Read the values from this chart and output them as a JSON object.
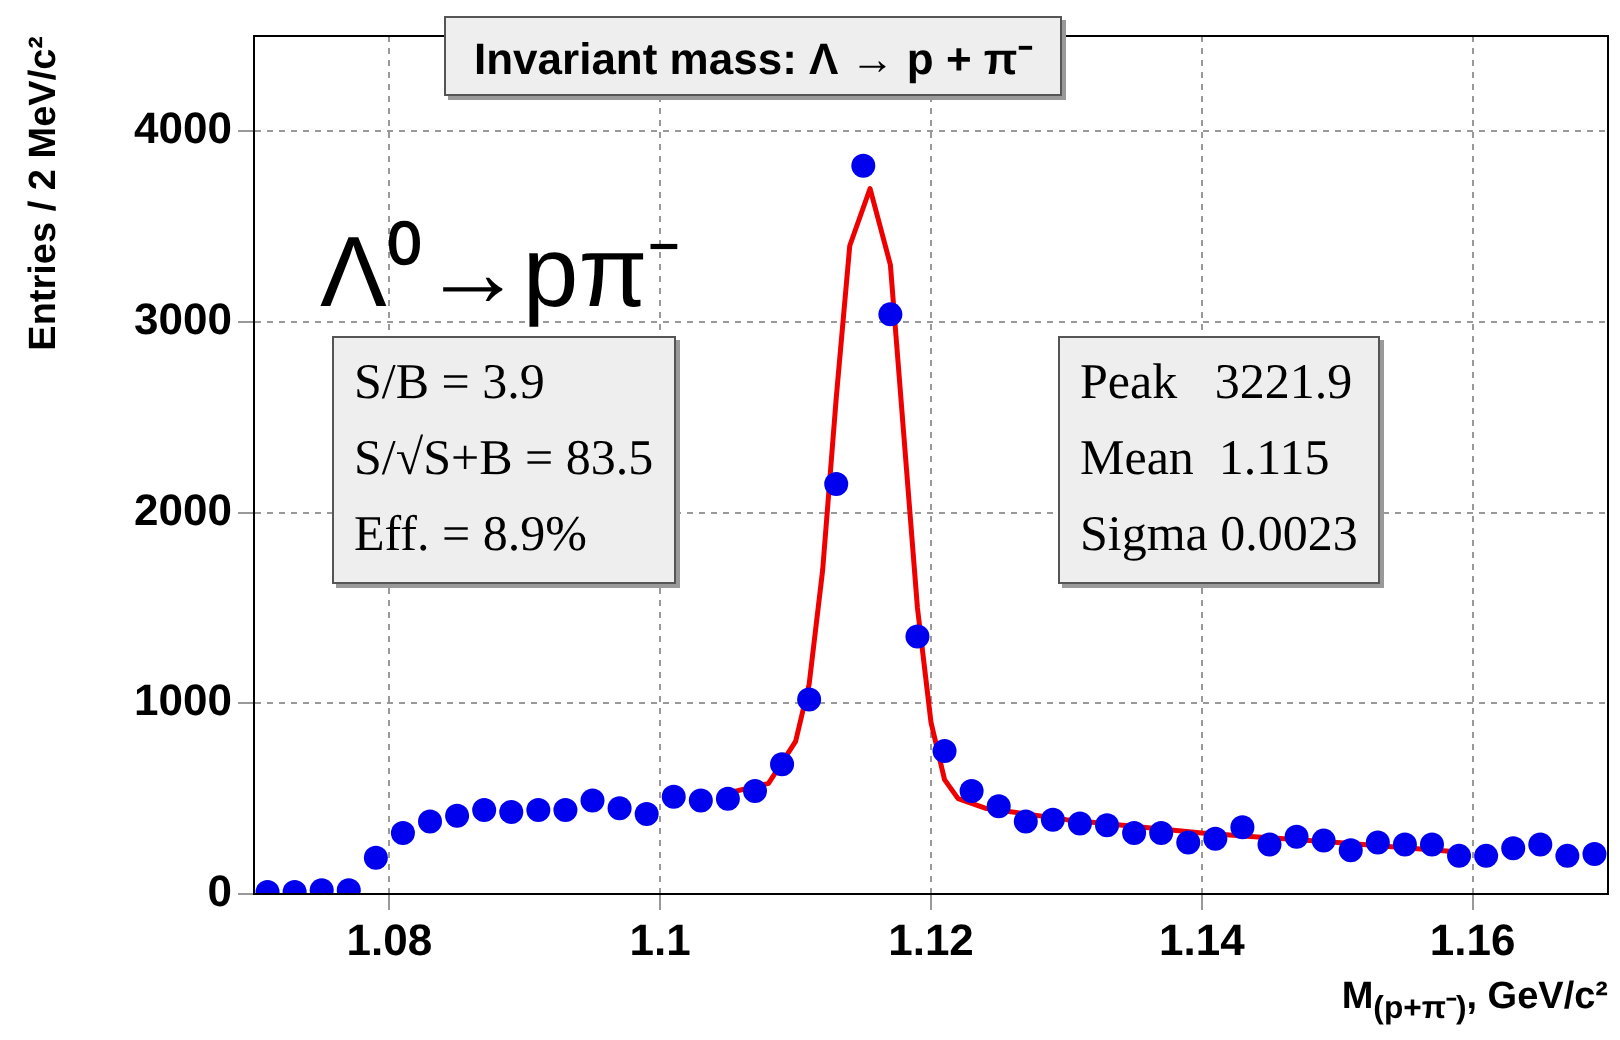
{
  "chart_data": {
    "type": "scatter",
    "title": "Invariant mass: Λ → p + π⁻",
    "xlabel": "M$_{(p+π⁻)}$, GeV/c²",
    "ylabel": "Entries / 2 MeV/c²",
    "annotations": [
      "Λ⁰→pπ⁻",
      "S/B = 3.9",
      "S/√S+B = 83.5",
      "Eff. = 8.9%",
      "Peak   3221.9",
      "Mean  1.115",
      "Sigma 0.0023"
    ],
    "xlim": [
      1.07,
      1.17
    ],
    "xticks": [
      1.08,
      1.1,
      1.12,
      1.14,
      1.16
    ],
    "ylim": [
      0,
      4500
    ],
    "yticks": [
      0,
      1000,
      2000,
      3000,
      4000
    ],
    "grid": true,
    "legend": false,
    "series": [
      {
        "type": "scatter",
        "marker": "circle",
        "color": "#0000ee",
        "x": [
          1.071,
          1.073,
          1.075,
          1.077,
          1.079,
          1.081,
          1.083,
          1.085,
          1.087,
          1.089,
          1.091,
          1.093,
          1.095,
          1.097,
          1.099,
          1.101,
          1.103,
          1.105,
          1.107,
          1.109,
          1.111,
          1.113,
          1.115,
          1.117,
          1.119,
          1.121,
          1.123,
          1.125,
          1.127,
          1.129,
          1.131,
          1.133,
          1.135,
          1.137,
          1.139,
          1.141,
          1.143,
          1.145,
          1.147,
          1.149,
          1.151,
          1.153,
          1.155,
          1.157,
          1.159,
          1.161,
          1.163,
          1.165,
          1.167,
          1.169
        ],
        "values": [
          10,
          10,
          20,
          20,
          190,
          320,
          380,
          410,
          440,
          430,
          440,
          440,
          490,
          450,
          420,
          510,
          490,
          500,
          540,
          680,
          1020,
          2150,
          3820,
          3040,
          1350,
          750,
          540,
          460,
          380,
          390,
          370,
          360,
          320,
          320,
          270,
          290,
          350,
          260,
          300,
          280,
          230,
          270,
          260,
          260,
          200,
          200,
          240,
          260,
          200,
          210
        ]
      },
      {
        "type": "line",
        "marker": "none",
        "color": "#ee0000",
        "x": [
          1.105,
          1.108,
          1.11,
          1.111,
          1.112,
          1.113,
          1.114,
          1.1155,
          1.117,
          1.118,
          1.119,
          1.12,
          1.121,
          1.122,
          1.124,
          1.13,
          1.14,
          1.15,
          1.159
        ],
        "values": [
          530,
          580,
          800,
          1100,
          1700,
          2600,
          3400,
          3700,
          3300,
          2400,
          1500,
          900,
          600,
          500,
          450,
          390,
          320,
          270,
          220
        ]
      }
    ]
  }
}
